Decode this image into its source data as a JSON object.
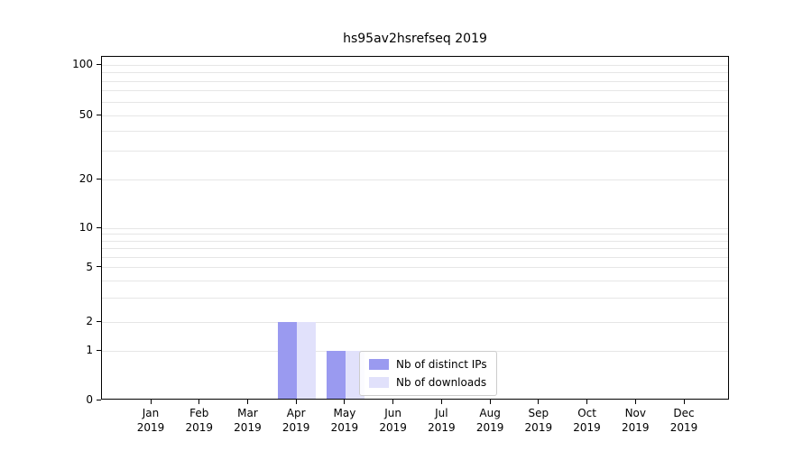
{
  "title": "hs95av2hsrefseq 2019",
  "chart_data": {
    "type": "bar",
    "title": "hs95av2hsrefseq 2019",
    "x_months": [
      "Jan",
      "Feb",
      "Mar",
      "Apr",
      "May",
      "Jun",
      "Jul",
      "Aug",
      "Sep",
      "Oct",
      "Nov",
      "Dec"
    ],
    "x_year": "2019",
    "series": [
      {
        "name": "Nb of distinct IPs",
        "color": "#9a9af0",
        "values": [
          0,
          0,
          0,
          2,
          1,
          0,
          0,
          0,
          0,
          0,
          0,
          0
        ]
      },
      {
        "name": "Nb of downloads",
        "color": "#e1e1fb",
        "values": [
          0,
          0,
          0,
          2,
          1,
          0,
          0,
          0,
          0,
          0,
          0,
          0
        ]
      }
    ],
    "yticks": [
      0,
      1,
      2,
      5,
      10,
      20,
      50,
      100
    ],
    "ylim": [
      0,
      110
    ],
    "yscale": "symlog",
    "grid": true,
    "gridline_values": [
      1,
      2,
      3,
      4,
      5,
      6,
      7,
      8,
      9,
      10,
      20,
      30,
      40,
      50,
      60,
      70,
      80,
      90,
      100
    ],
    "legend": {
      "items": [
        "Nb of distinct IPs",
        "Nb of downloads"
      ],
      "position": "lower center inside"
    }
  },
  "colors": {
    "grid": "#e6e6e6",
    "axis": "#000000",
    "background": "#ffffff",
    "legend_border": "#cccccc"
  }
}
